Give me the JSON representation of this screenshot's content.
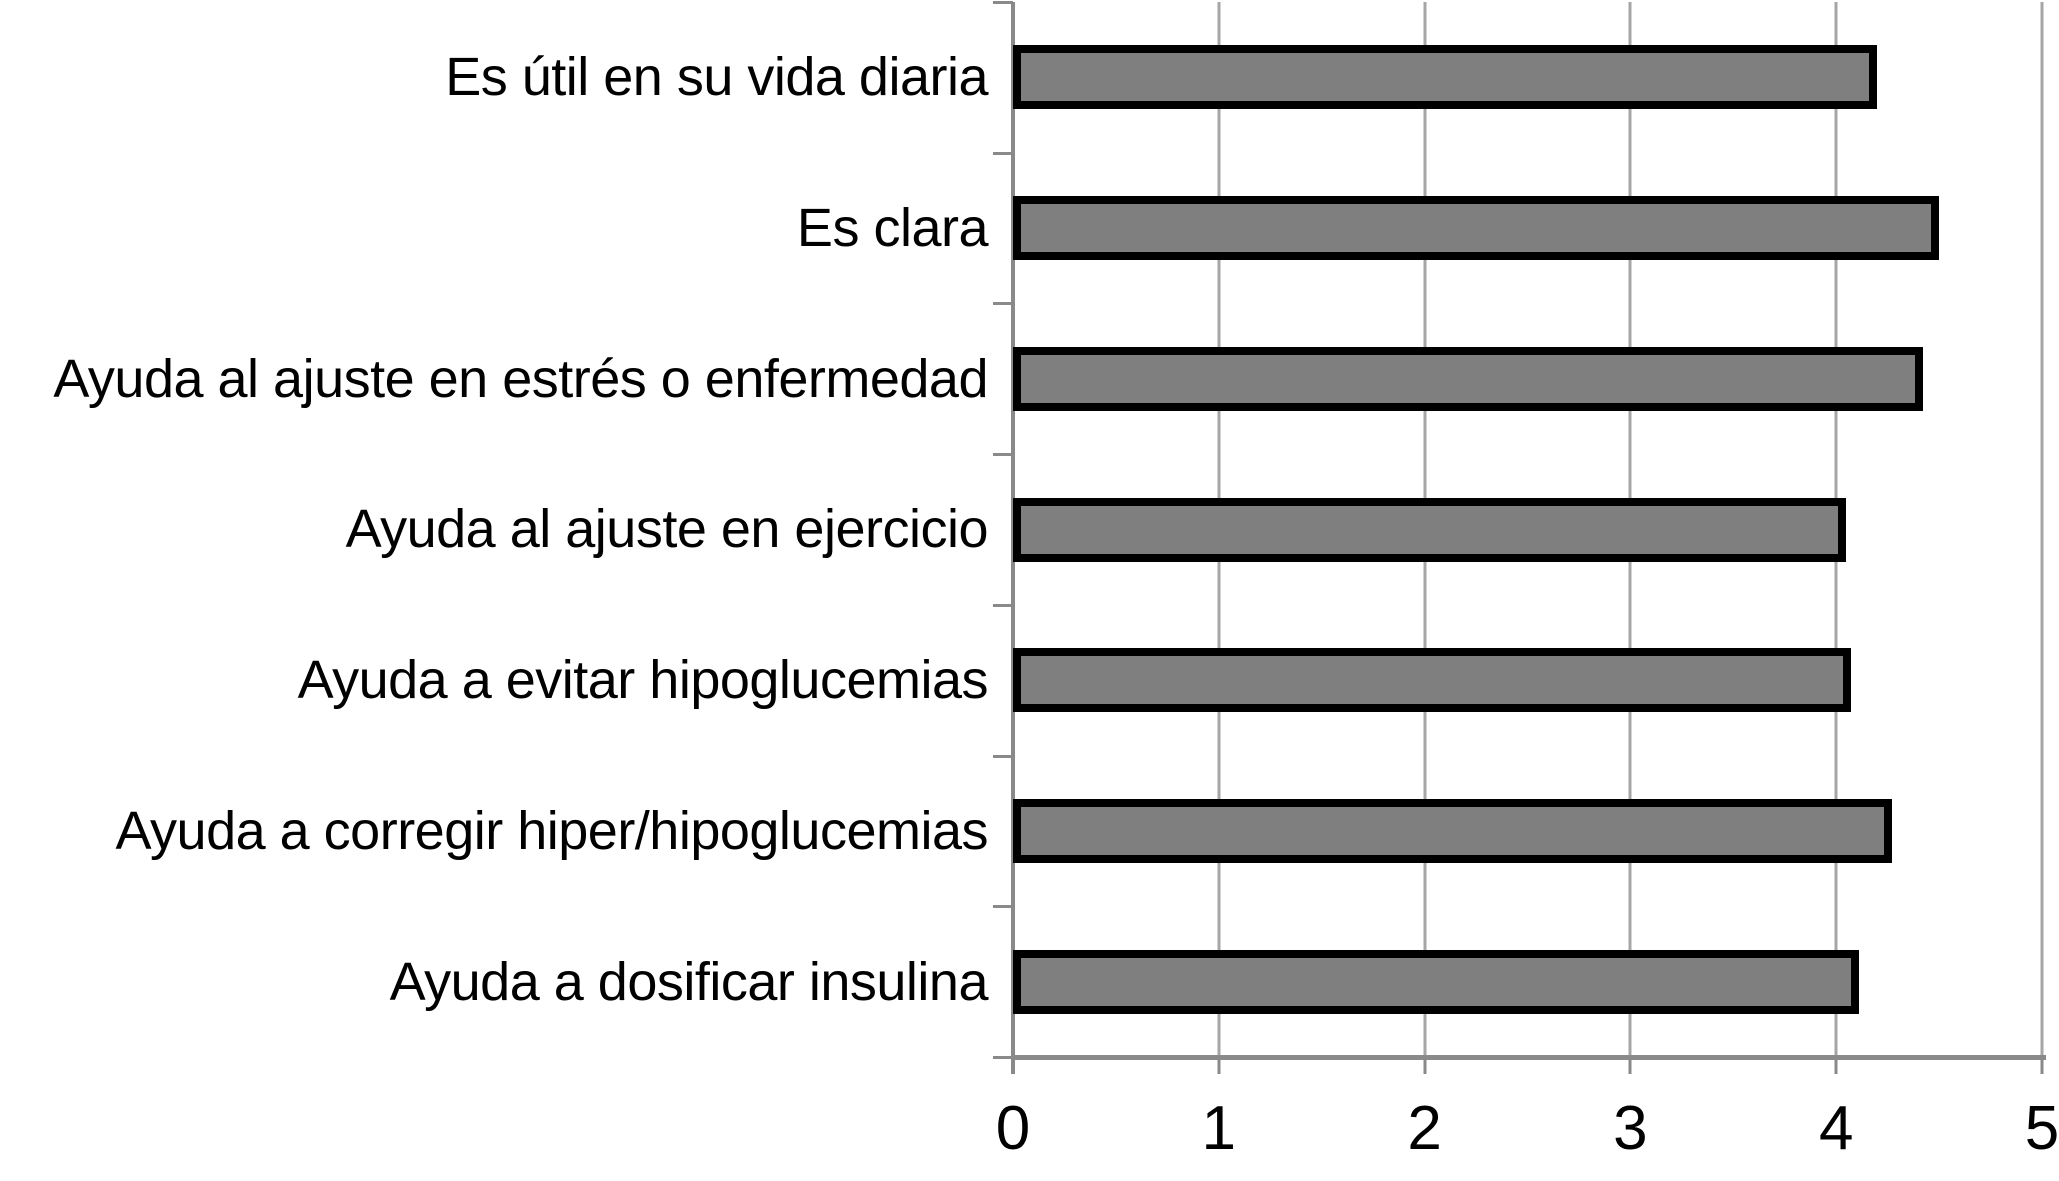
{
  "chart_data": {
    "type": "bar",
    "orientation": "horizontal",
    "title": "",
    "categories": [
      "Es útil en su vida diaria",
      "Es clara",
      "Ayuda al ajuste en estrés o enfermedad",
      "Ayuda al ajuste en ejercicio",
      "Ayuda a evitar hipoglucemias",
      "Ayuda a corregir hiper/hipoglucemias",
      "Ayuda a dosificar insulina"
    ],
    "values": [
      4.2,
      4.5,
      4.42,
      4.05,
      4.07,
      4.27,
      4.11
    ],
    "xlabel": "",
    "ylabel": "",
    "xlim": [
      0,
      5
    ],
    "x_ticks": [
      "0",
      "1",
      "2",
      "3",
      "4",
      "5"
    ],
    "grid": "vertical-gridlines-on",
    "legend": "none",
    "colors": {
      "bar_fill": "#7f7f7f",
      "bar_border": "#000000",
      "gridline": "#a6a6a6",
      "axis": "#8a8a8a",
      "text": "#000000",
      "background": "#ffffff"
    }
  }
}
